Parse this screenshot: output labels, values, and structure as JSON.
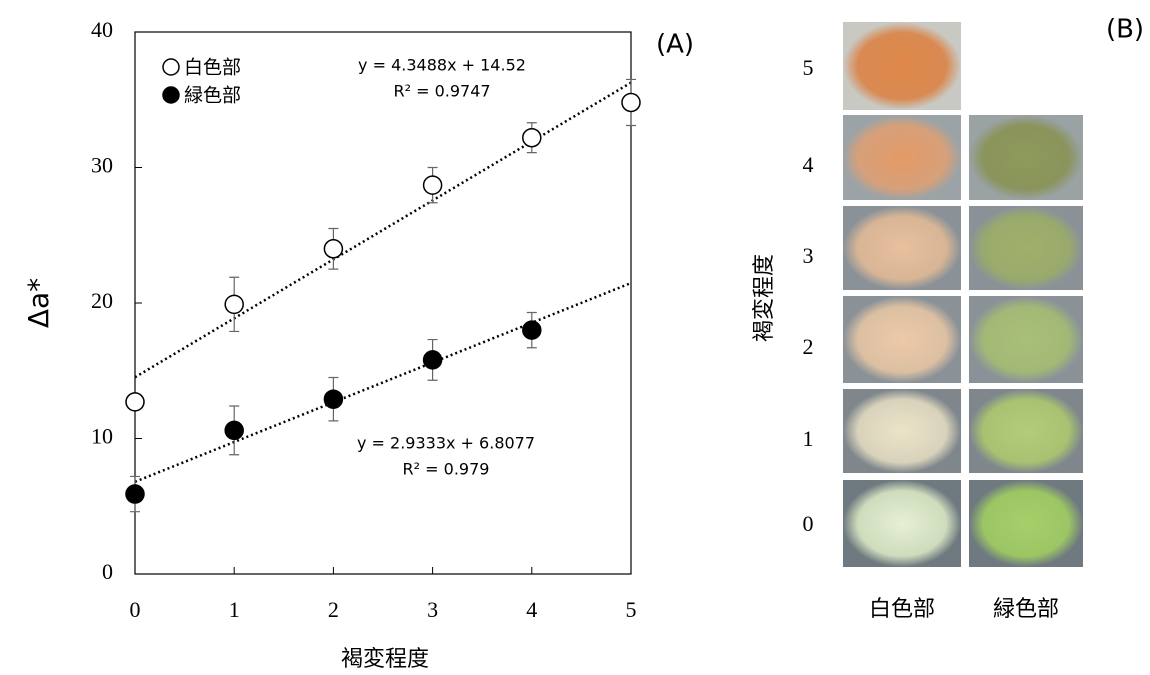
{
  "chart_data": {
    "type": "scatter",
    "panel_label": "(A)",
    "x_label": "褐変程度",
    "y_label": "Δa*",
    "x": [
      0,
      1,
      2,
      3,
      4,
      5
    ],
    "series": [
      {
        "name": "白色部",
        "color": "#ffffff",
        "values": [
          12.7,
          19.9,
          24.0,
          28.7,
          32.2,
          34.8
        ],
        "errors": [
          0.5,
          2.0,
          1.5,
          1.3,
          1.1,
          1.7
        ],
        "trendline": {
          "slope": 4.3488,
          "intercept": 14.52,
          "equation": "y = 4.3488x + 14.52",
          "r2": "R² = 0.9747"
        }
      },
      {
        "name": "緑色部",
        "color": "#000000",
        "values": [
          5.9,
          10.6,
          12.9,
          15.8,
          18.0,
          null
        ],
        "errors": [
          1.3,
          1.8,
          1.6,
          1.5,
          1.3,
          null
        ],
        "trendline": {
          "slope": 2.9333,
          "intercept": 6.8077,
          "equation": "y = 2.9333x + 6.8077",
          "r2": "R² = 0.979"
        }
      }
    ],
    "xlim": [
      0,
      5
    ],
    "xticks": [
      0,
      1,
      2,
      3,
      4,
      5
    ],
    "ylim": [
      0,
      40
    ],
    "yticks": [
      0,
      10,
      20,
      30,
      40
    ],
    "legend": "upper left"
  },
  "panel_b": {
    "label": "(B)",
    "y_title": "褐変程度",
    "rows": [
      "5",
      "4",
      "3",
      "2",
      "1",
      "0"
    ],
    "columns": [
      "白色部",
      "緑色部"
    ]
  }
}
